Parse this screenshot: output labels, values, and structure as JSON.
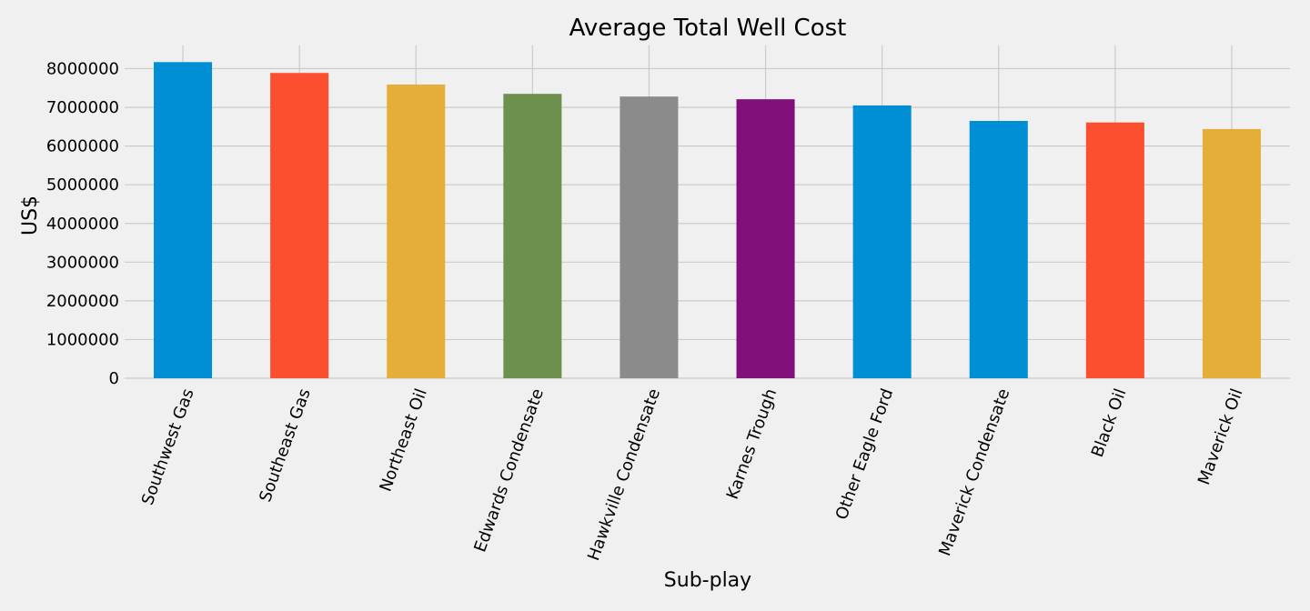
{
  "chart_data": {
    "type": "bar",
    "title": "Average Total Well Cost",
    "xlabel": "Sub-play",
    "ylabel": "US$",
    "categories": [
      "Southwest Gas",
      "Southeast Gas",
      "Northeast Oil",
      "Edwards Condensate",
      "Hawkville Condensate",
      "Karnes Trough",
      "Other Eagle Ford",
      "Maverick Condensate",
      "Black Oil",
      "Maverick Oil"
    ],
    "values": [
      8170000,
      7890000,
      7590000,
      7350000,
      7280000,
      7210000,
      7050000,
      6650000,
      6610000,
      6440000
    ],
    "colors": [
      "#008fd5",
      "#fc4f30",
      "#e5ae38",
      "#6d904f",
      "#8b8b8b",
      "#810f7c",
      "#008fd5",
      "#008fd5",
      "#fc4f30",
      "#e5ae38"
    ],
    "ylim": [
      0,
      8600000
    ],
    "yticks": [
      0,
      1000000,
      2000000,
      3000000,
      4000000,
      5000000,
      6000000,
      7000000,
      8000000
    ],
    "ytick_labels": [
      "0",
      "1000000",
      "2000000",
      "3000000",
      "4000000",
      "5000000",
      "6000000",
      "7000000",
      "8000000"
    ],
    "grid": true,
    "tick_label_rotation_deg": 70,
    "background_color": "#f0f0f0",
    "grid_color": "#cbcbcb"
  }
}
